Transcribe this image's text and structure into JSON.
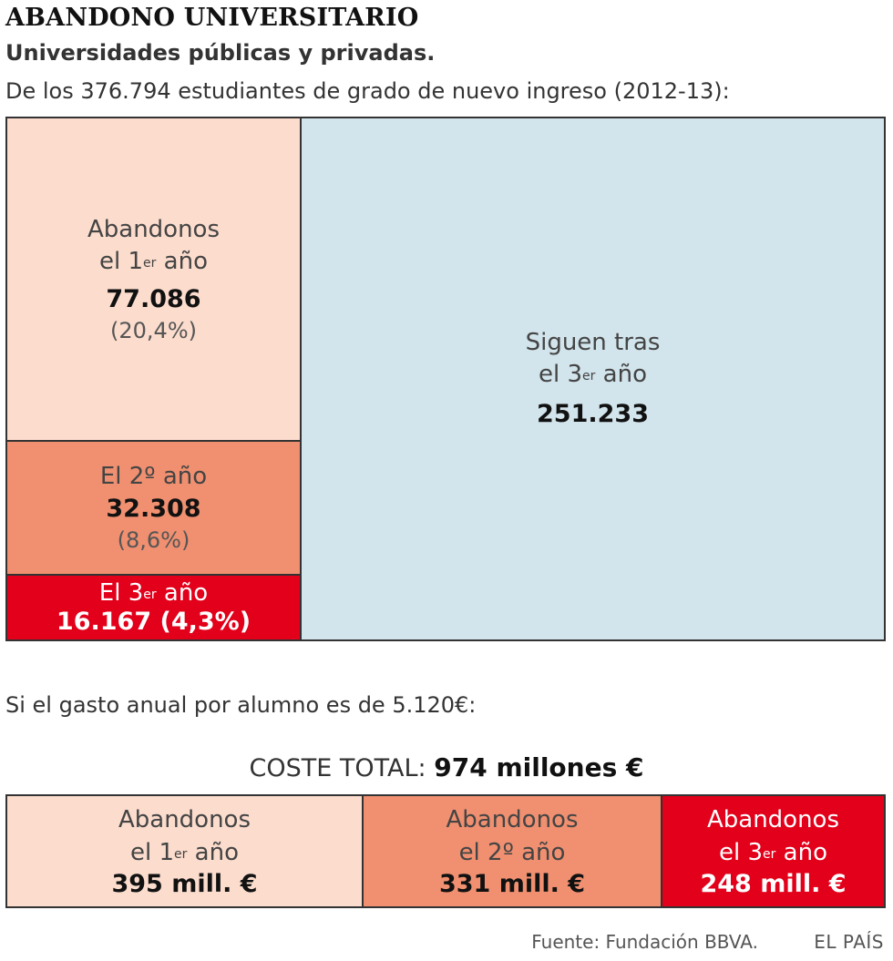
{
  "header": {
    "title": "ABANDONO UNIVERSITARIO",
    "subtitle": "Universidades públicas y privadas.",
    "intro": "De los 376.794 estudiantes de grado de nuevo ingreso (2012-13):"
  },
  "chart_data": [
    {
      "type": "treemap",
      "total": 376794,
      "items": [
        {
          "name": "abandonos-1",
          "label_line1": "Abandonos",
          "label_line2_pre": "el 1",
          "label_line2_sup": "er",
          "label_line2_post": " año",
          "value": 77086,
          "value_text": "77.086",
          "pct_text": "(20,4%)",
          "color": "#fbdccd"
        },
        {
          "name": "abandonos-2",
          "label_line1": "El 2º año",
          "value": 32308,
          "value_text": "32.308",
          "pct_text": "(8,6%)",
          "color": "#f09070"
        },
        {
          "name": "abandonos-3",
          "label_line1_pre": "El 3",
          "label_line1_sup": "er",
          "label_line1_post": " año",
          "value": 16167,
          "value_text": "16.167 (4,3%)",
          "color": "#e2001a"
        },
        {
          "name": "siguen",
          "label_line1": "Siguen tras",
          "label_line2_pre": "el 3",
          "label_line2_sup": "er",
          "label_line2_post": " año",
          "value": 251233,
          "value_text": "251.233",
          "color": "#d2e4ec"
        }
      ]
    },
    {
      "type": "bar",
      "intro": "Si el gasto anual por alumno es de 5.120€:",
      "total_label": "COSTE TOTAL:",
      "total_value_text": "974 millones €",
      "items": [
        {
          "label_line1": "Abandonos",
          "label_line2_pre": "el 1",
          "label_line2_sup": "er",
          "label_line2_post": " año",
          "value": 395,
          "value_text": "395 mill. €",
          "color": "#fbdccd"
        },
        {
          "label_line1": "Abandonos",
          "label_line2": "el 2º año",
          "value": 331,
          "value_text": "331 mill. €",
          "color": "#f09070"
        },
        {
          "label_line1": "Abandonos",
          "label_line2_pre": "el 3",
          "label_line2_sup": "er",
          "label_line2_post": " año",
          "value": 248,
          "value_text": "248 mill. €",
          "color": "#e2001a"
        }
      ]
    }
  ],
  "footer": {
    "source": "Fuente: Fundación BBVA.",
    "brand": "EL PAÍS"
  }
}
